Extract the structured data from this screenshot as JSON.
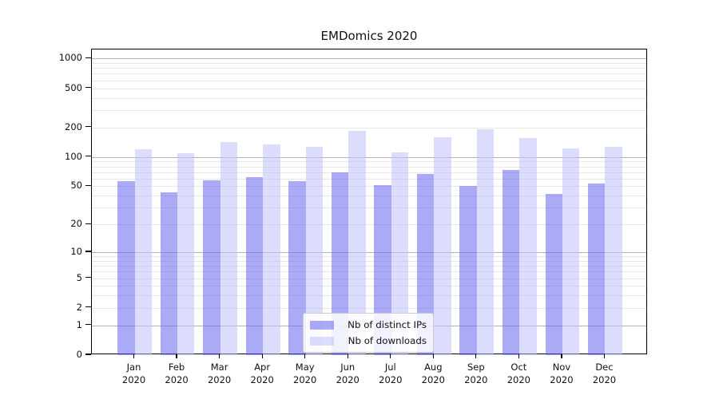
{
  "chart_data": {
    "type": "bar",
    "title": "EMDomics 2020",
    "categories": [
      "Jan 2020",
      "Feb 2020",
      "Mar 2020",
      "Apr 2020",
      "May 2020",
      "Jun 2020",
      "Jul 2020",
      "Aug 2020",
      "Sep 2020",
      "Oct 2020",
      "Nov 2020",
      "Dec 2020"
    ],
    "series": [
      {
        "name": "Nb of distinct IPs",
        "color": "#aaaaf8",
        "fill": "rgba(100,100,240,0.55)",
        "values": [
          57,
          43,
          58,
          62,
          56,
          70,
          51,
          67,
          50,
          74,
          42,
          53
        ]
      },
      {
        "name": "Nb of downloads",
        "color": "#dcdcfa",
        "fill": "rgba(191,191,250,0.55)",
        "values": [
          120,
          110,
          141,
          133,
          128,
          185,
          111,
          159,
          193,
          155,
          123,
          126
        ]
      }
    ],
    "xlabel": "",
    "ylabel": "",
    "yscale": "log1p",
    "yticks": [
      0,
      1,
      2,
      5,
      10,
      20,
      50,
      100,
      200,
      500,
      1000
    ],
    "ylim": [
      0,
      1270
    ],
    "grid": {
      "on": true,
      "minor_color": "#e7e7e7",
      "major_color": "#b3b3b3",
      "major_at": [
        1,
        10,
        100,
        1000
      ]
    },
    "legend_position": "lower-center",
    "axis_color": "#000000",
    "background": "#ffffff"
  }
}
